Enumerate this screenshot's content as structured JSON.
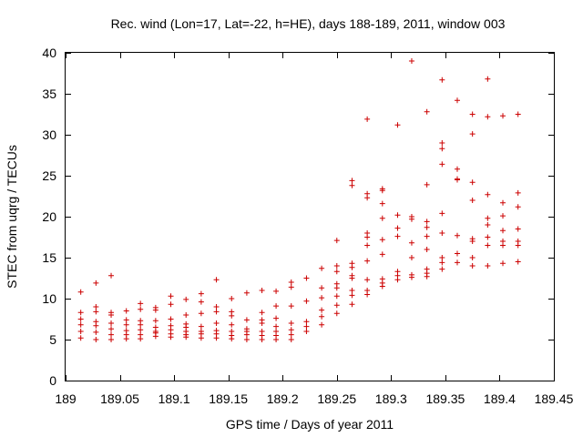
{
  "chart_data": {
    "type": "scatter",
    "title": "Rec. wind (Lon=17, Lat=-22, h=HE), days 188-189, 2011, window 003",
    "xlabel": "GPS time / Days of year 2011",
    "ylabel": "STEC from uqrg / TECUs",
    "xlim": [
      189,
      189.45
    ],
    "ylim": [
      0,
      40
    ],
    "xticks": [
      189,
      189.05,
      189.1,
      189.15,
      189.2,
      189.25,
      189.3,
      189.35,
      189.4,
      189.45
    ],
    "xtick_labels": [
      "189",
      "189.05",
      "189.1",
      "189.15",
      "189.2",
      "189.25",
      "189.3",
      "189.35",
      "189.4",
      "189.45"
    ],
    "yticks": [
      0,
      5,
      10,
      15,
      20,
      25,
      30,
      35,
      40
    ],
    "ytick_labels": [
      "0",
      "5",
      "10",
      "15",
      "20",
      "25",
      "30",
      "35",
      "40"
    ],
    "marker": "+",
    "color": "#cc0000",
    "series": [
      {
        "name": "STEC",
        "points": [
          [
            189.014,
            10.8
          ],
          [
            189.014,
            8.3
          ],
          [
            189.014,
            7.5
          ],
          [
            189.014,
            6.8
          ],
          [
            189.014,
            6.0
          ],
          [
            189.014,
            5.2
          ],
          [
            189.028,
            11.9
          ],
          [
            189.028,
            9.0
          ],
          [
            189.028,
            8.4
          ],
          [
            189.028,
            7.2
          ],
          [
            189.028,
            6.7
          ],
          [
            189.028,
            5.9
          ],
          [
            189.028,
            5.0
          ],
          [
            189.042,
            12.8
          ],
          [
            189.042,
            8.3
          ],
          [
            189.042,
            8.0
          ],
          [
            189.042,
            7.0
          ],
          [
            189.042,
            6.3
          ],
          [
            189.042,
            5.6
          ],
          [
            189.042,
            5.0
          ],
          [
            189.056,
            8.5
          ],
          [
            189.056,
            7.4
          ],
          [
            189.056,
            6.8
          ],
          [
            189.056,
            6.1
          ],
          [
            189.056,
            5.6
          ],
          [
            189.056,
            5.1
          ],
          [
            189.069,
            9.4
          ],
          [
            189.069,
            8.7
          ],
          [
            189.069,
            7.3
          ],
          [
            189.069,
            6.8
          ],
          [
            189.069,
            6.2
          ],
          [
            189.069,
            5.6
          ],
          [
            189.069,
            5.1
          ],
          [
            189.083,
            8.9
          ],
          [
            189.083,
            8.6
          ],
          [
            189.083,
            7.3
          ],
          [
            189.083,
            6.5
          ],
          [
            189.083,
            6.0
          ],
          [
            189.083,
            5.8
          ],
          [
            189.083,
            5.4
          ],
          [
            189.097,
            10.3
          ],
          [
            189.097,
            9.3
          ],
          [
            189.097,
            7.5
          ],
          [
            189.097,
            6.7
          ],
          [
            189.097,
            6.2
          ],
          [
            189.097,
            5.7
          ],
          [
            189.097,
            5.3
          ],
          [
            189.111,
            9.9
          ],
          [
            189.111,
            8.0
          ],
          [
            189.111,
            6.9
          ],
          [
            189.111,
            6.5
          ],
          [
            189.111,
            6.0
          ],
          [
            189.111,
            5.6
          ],
          [
            189.111,
            5.3
          ],
          [
            189.125,
            10.6
          ],
          [
            189.125,
            9.6
          ],
          [
            189.125,
            8.2
          ],
          [
            189.125,
            6.6
          ],
          [
            189.125,
            6.0
          ],
          [
            189.125,
            5.7
          ],
          [
            189.125,
            5.2
          ],
          [
            189.139,
            12.3
          ],
          [
            189.139,
            9.0
          ],
          [
            189.139,
            8.4
          ],
          [
            189.139,
            7.0
          ],
          [
            189.139,
            6.1
          ],
          [
            189.139,
            5.7
          ],
          [
            189.139,
            5.2
          ],
          [
            189.153,
            10.0
          ],
          [
            189.153,
            8.4
          ],
          [
            189.153,
            7.9
          ],
          [
            189.153,
            6.8
          ],
          [
            189.153,
            6.0
          ],
          [
            189.153,
            5.5
          ],
          [
            189.153,
            5.1
          ],
          [
            189.167,
            10.7
          ],
          [
            189.167,
            7.4
          ],
          [
            189.167,
            6.3
          ],
          [
            189.167,
            6.0
          ],
          [
            189.167,
            5.6
          ],
          [
            189.167,
            5.0
          ],
          [
            189.181,
            11.0
          ],
          [
            189.181,
            8.3
          ],
          [
            189.181,
            7.4
          ],
          [
            189.181,
            7.0
          ],
          [
            189.181,
            6.0
          ],
          [
            189.181,
            5.5
          ],
          [
            189.181,
            5.0
          ],
          [
            189.194,
            10.9
          ],
          [
            189.194,
            9.1
          ],
          [
            189.194,
            7.6
          ],
          [
            189.194,
            6.6
          ],
          [
            189.194,
            6.0
          ],
          [
            189.194,
            5.5
          ],
          [
            189.194,
            5.0
          ],
          [
            189.208,
            12.0
          ],
          [
            189.208,
            11.4
          ],
          [
            189.208,
            9.1
          ],
          [
            189.208,
            7.0
          ],
          [
            189.208,
            6.2
          ],
          [
            189.208,
            5.6
          ],
          [
            189.208,
            5.0
          ],
          [
            189.222,
            12.5
          ],
          [
            189.222,
            9.7
          ],
          [
            189.222,
            7.2
          ],
          [
            189.222,
            6.6
          ],
          [
            189.222,
            6.0
          ],
          [
            189.236,
            13.7
          ],
          [
            189.236,
            11.3
          ],
          [
            189.236,
            10.1
          ],
          [
            189.236,
            8.6
          ],
          [
            189.236,
            7.8
          ],
          [
            189.236,
            6.8
          ],
          [
            189.25,
            17.1
          ],
          [
            189.25,
            14.0
          ],
          [
            189.25,
            13.3
          ],
          [
            189.25,
            11.8
          ],
          [
            189.25,
            11.3
          ],
          [
            189.25,
            10.3
          ],
          [
            189.25,
            9.2
          ],
          [
            189.25,
            8.2
          ],
          [
            189.264,
            24.4
          ],
          [
            189.264,
            23.8
          ],
          [
            189.264,
            14.3
          ],
          [
            189.264,
            13.8
          ],
          [
            189.264,
            12.8
          ],
          [
            189.264,
            12.5
          ],
          [
            189.264,
            11.0
          ],
          [
            189.264,
            10.4
          ],
          [
            189.264,
            9.3
          ],
          [
            189.278,
            31.9
          ],
          [
            189.278,
            22.8
          ],
          [
            189.278,
            22.3
          ],
          [
            189.278,
            18.0
          ],
          [
            189.278,
            17.5
          ],
          [
            189.278,
            16.5
          ],
          [
            189.278,
            14.6
          ],
          [
            189.278,
            12.3
          ],
          [
            189.278,
            11.0
          ],
          [
            189.278,
            10.5
          ],
          [
            189.292,
            23.4
          ],
          [
            189.292,
            23.2
          ],
          [
            189.292,
            21.6
          ],
          [
            189.292,
            19.8
          ],
          [
            189.292,
            17.2
          ],
          [
            189.292,
            15.4
          ],
          [
            189.292,
            12.4
          ],
          [
            189.292,
            11.9
          ],
          [
            189.292,
            11.5
          ],
          [
            189.306,
            31.2
          ],
          [
            189.306,
            20.2
          ],
          [
            189.306,
            18.6
          ],
          [
            189.306,
            17.6
          ],
          [
            189.306,
            13.3
          ],
          [
            189.306,
            12.8
          ],
          [
            189.306,
            12.3
          ],
          [
            189.319,
            39.0
          ],
          [
            189.319,
            20.0
          ],
          [
            189.319,
            19.7
          ],
          [
            189.319,
            16.8
          ],
          [
            189.319,
            15.0
          ],
          [
            189.319,
            12.9
          ],
          [
            189.319,
            12.6
          ],
          [
            189.333,
            32.8
          ],
          [
            189.333,
            23.9
          ],
          [
            189.333,
            19.4
          ],
          [
            189.333,
            18.7
          ],
          [
            189.333,
            17.6
          ],
          [
            189.333,
            16.0
          ],
          [
            189.333,
            13.6
          ],
          [
            189.333,
            13.1
          ],
          [
            189.333,
            12.7
          ],
          [
            189.347,
            36.7
          ],
          [
            189.347,
            29.0
          ],
          [
            189.347,
            28.3
          ],
          [
            189.347,
            26.4
          ],
          [
            189.347,
            20.4
          ],
          [
            189.347,
            18.0
          ],
          [
            189.347,
            15.0
          ],
          [
            189.347,
            14.4
          ],
          [
            189.347,
            13.6
          ],
          [
            189.361,
            34.2
          ],
          [
            189.361,
            25.8
          ],
          [
            189.361,
            24.6
          ],
          [
            189.361,
            24.5
          ],
          [
            189.361,
            17.7
          ],
          [
            189.361,
            15.5
          ],
          [
            189.361,
            14.4
          ],
          [
            189.375,
            32.5
          ],
          [
            189.375,
            30.1
          ],
          [
            189.375,
            24.2
          ],
          [
            189.375,
            22.0
          ],
          [
            189.375,
            17.3
          ],
          [
            189.375,
            17.0
          ],
          [
            189.375,
            15.0
          ],
          [
            189.375,
            14.0
          ],
          [
            189.389,
            36.8
          ],
          [
            189.389,
            32.2
          ],
          [
            189.389,
            22.7
          ],
          [
            189.389,
            19.8
          ],
          [
            189.389,
            19.0
          ],
          [
            189.389,
            17.5
          ],
          [
            189.389,
            16.5
          ],
          [
            189.389,
            14.0
          ],
          [
            189.403,
            32.3
          ],
          [
            189.403,
            21.7
          ],
          [
            189.403,
            20.1
          ],
          [
            189.403,
            18.3
          ],
          [
            189.403,
            17.0
          ],
          [
            189.403,
            16.5
          ],
          [
            189.403,
            14.3
          ],
          [
            189.417,
            32.5
          ],
          [
            189.417,
            22.9
          ],
          [
            189.417,
            21.2
          ],
          [
            189.417,
            18.5
          ],
          [
            189.417,
            17.0
          ],
          [
            189.417,
            16.5
          ],
          [
            189.417,
            14.5
          ]
        ]
      }
    ]
  }
}
